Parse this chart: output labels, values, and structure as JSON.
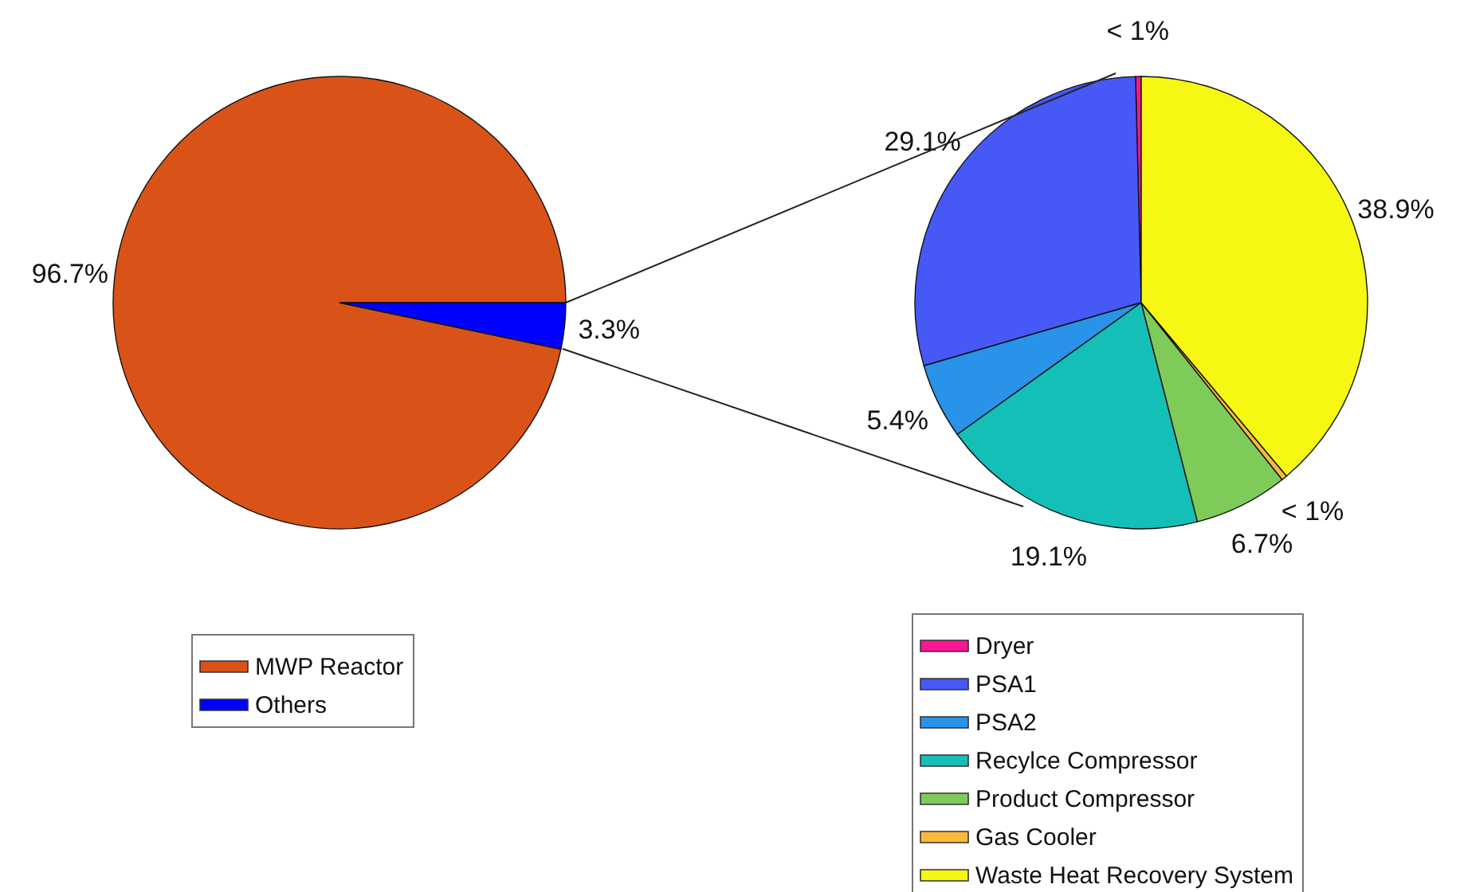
{
  "chart_data": [
    {
      "type": "pie",
      "categories": [
        "MWP Reactor",
        "Others"
      ],
      "values": [
        96.7,
        3.3
      ],
      "colors": [
        "#d95319",
        "#0000ff"
      ],
      "value_labels": [
        "96.7%",
        "3.3%"
      ],
      "legend": "bottom"
    },
    {
      "type": "pie",
      "categories": [
        "Dryer",
        "PSA1",
        "PSA2",
        "Recylce Compressor",
        "Product Compressor",
        "Gas Cooler",
        "Waste Heat Recovery System"
      ],
      "values": [
        0.4,
        29.1,
        5.4,
        19.1,
        6.7,
        0.4,
        38.9
      ],
      "colors": [
        "#ff1493",
        "#4658f5",
        "#2893e8",
        "#14bfb8",
        "#7fcb5a",
        "#fbb93c",
        "#f7f714"
      ],
      "value_labels": [
        "< 1%",
        "29.1%",
        "5.4%",
        "19.1%",
        "6.7%",
        "< 1%",
        "38.9%"
      ],
      "legend": "bottom"
    }
  ]
}
